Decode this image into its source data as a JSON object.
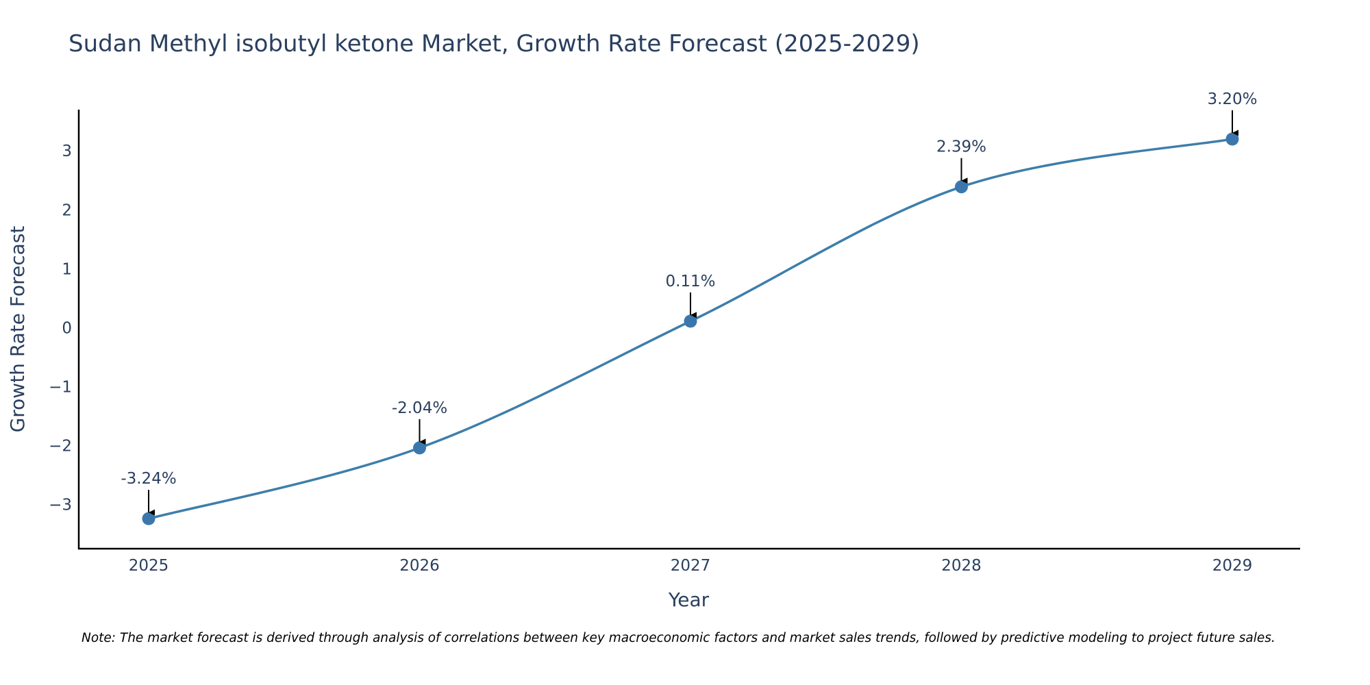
{
  "chart_data": {
    "type": "line",
    "title": "Sudan Methyl isobutyl ketone Market, Growth Rate Forecast (2025-2029)",
    "xlabel": "Year",
    "ylabel": "Growth Rate Forecast",
    "categories": [
      "2025",
      "2026",
      "2027",
      "2028",
      "2029"
    ],
    "values": [
      -3.24,
      -2.04,
      0.11,
      2.39,
      3.2
    ],
    "data_labels": [
      "-3.24%",
      "-2.04%",
      "0.11%",
      "2.39%",
      "3.20%"
    ],
    "y_ticks": [
      -3,
      -2,
      -1,
      0,
      1,
      2,
      3
    ],
    "y_tick_labels": [
      "−3",
      "−2",
      "−1",
      "0",
      "1",
      "2",
      "3"
    ],
    "ylim": [
      -3.75,
      3.7
    ],
    "grid": false,
    "line_shape": "spline",
    "note": "Note: The market forecast is derived through analysis of correlations between key macroeconomic factors and market sales trends, followed by predictive modeling to project future sales."
  },
  "colors": {
    "series": "#3d7eab",
    "marker": "#3b77ad",
    "axis": "#000000",
    "text": "#2a3f5f"
  }
}
